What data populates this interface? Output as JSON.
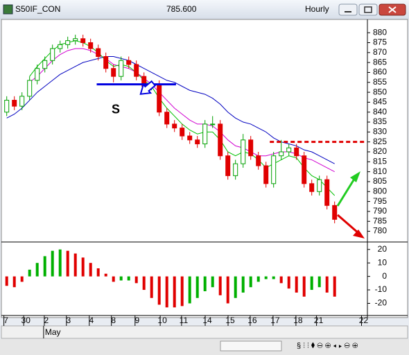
{
  "window": {
    "title": "S50IF_CON",
    "last": "785.600",
    "interval": "Hourly"
  },
  "chart_data": [
    {
      "type": "candlestick",
      "open": [
        840,
        846,
        843,
        848,
        856,
        862,
        866,
        872,
        874,
        876,
        877,
        875,
        872,
        868,
        862,
        858,
        866,
        864,
        858,
        853,
        854,
        840,
        834,
        832,
        828,
        826,
        824,
        834,
        834,
        818,
        808,
        814,
        826,
        818,
        813,
        804,
        818,
        820,
        822,
        818,
        804,
        800,
        806,
        793
      ],
      "high": [
        848,
        848,
        850,
        858,
        864,
        868,
        874,
        876,
        878,
        879,
        879,
        877,
        874,
        870,
        864,
        868,
        868,
        866,
        860,
        856,
        856,
        842,
        836,
        834,
        830,
        828,
        836,
        838,
        836,
        820,
        816,
        829,
        828,
        820,
        815,
        820,
        826,
        824,
        824,
        820,
        806,
        808,
        808,
        795
      ],
      "low": [
        838,
        841,
        841,
        846,
        854,
        860,
        864,
        870,
        872,
        874,
        873,
        870,
        866,
        860,
        855,
        856,
        862,
        856,
        851,
        851,
        838,
        832,
        830,
        826,
        824,
        822,
        822,
        832,
        816,
        806,
        806,
        812,
        816,
        811,
        802,
        802,
        816,
        818,
        816,
        802,
        798,
        798,
        791,
        784
      ],
      "close": [
        846,
        843,
        848,
        856,
        862,
        866,
        872,
        874,
        876,
        877,
        875,
        872,
        868,
        862,
        858,
        866,
        864,
        858,
        853,
        854,
        840,
        834,
        832,
        828,
        826,
        824,
        834,
        834,
        818,
        808,
        814,
        826,
        818,
        813,
        804,
        818,
        820,
        822,
        818,
        804,
        800,
        806,
        793,
        786
      ],
      "up_color": "#00a000",
      "down_color": "#e00000",
      "overlays": [
        {
          "color": "#0000c0",
          "values": [
            837,
            839,
            842,
            846,
            850,
            853,
            856,
            859,
            861,
            863,
            865,
            866,
            867,
            868,
            868,
            867,
            866,
            864,
            862,
            860,
            858,
            856,
            855,
            853,
            851,
            850,
            849,
            847,
            844,
            840,
            837,
            835,
            834,
            832,
            830,
            827,
            825,
            824,
            823,
            821,
            820,
            818,
            816,
            814
          ]
        },
        {
          "color": "#d000d0",
          "values": [
            null,
            null,
            null,
            855,
            858,
            862,
            866,
            869,
            871,
            872,
            872,
            871,
            869,
            867,
            864,
            863,
            862,
            860,
            857,
            854,
            850,
            846,
            842,
            839,
            836,
            834,
            834,
            833,
            830,
            826,
            823,
            822,
            820,
            818,
            818,
            819,
            820,
            820,
            819,
            817,
            816,
            814,
            812,
            810
          ]
        },
        {
          "color": "#00c000",
          "values": [
            null,
            null,
            null,
            858,
            863,
            867,
            871,
            874,
            875,
            876,
            875,
            873,
            870,
            866,
            863,
            864,
            863,
            860,
            856,
            853,
            847,
            842,
            838,
            834,
            831,
            829,
            830,
            830,
            826,
            820,
            818,
            820,
            819,
            816,
            812,
            814,
            816,
            818,
            817,
            812,
            808,
            806,
            802,
            798
          ]
        }
      ],
      "levels": [
        {
          "value": 854,
          "x": [
            11.8,
            22.2
          ],
          "color": "#0000e0",
          "dashed": false
        },
        {
          "value": 825,
          "x": [
            34.5,
            47
          ],
          "color": "#e00000",
          "dashed": true
        }
      ],
      "annotations": [
        {
          "text": "S",
          "x": 14.3,
          "y": 841
        }
      ],
      "xlim": [
        -0.7,
        47.3
      ],
      "ylim": [
        776,
        886
      ],
      "yticks": [
        780,
        785,
        790,
        795,
        800,
        805,
        810,
        815,
        820,
        825,
        830,
        835,
        840,
        845,
        850,
        855,
        860,
        865,
        870,
        875,
        880
      ],
      "grid": false
    },
    {
      "type": "histogram-bar",
      "values": [
        -7,
        -8,
        -4,
        5,
        10,
        15,
        19,
        20,
        19,
        17,
        14,
        10,
        6,
        2,
        -4,
        -3,
        -3,
        -5,
        -10,
        -16,
        -21,
        -23,
        -23,
        -22,
        -20,
        -16,
        -11,
        -8,
        -14,
        -20,
        -16,
        -12,
        -8,
        -4,
        -2,
        -2,
        -5,
        -9,
        -12,
        -15,
        -10,
        -8,
        -12,
        -15
      ],
      "colors": [
        "#e00000",
        "#e00000",
        "#e00000",
        "#00b000",
        "#00b000",
        "#00b000",
        "#00b000",
        "#00b000",
        "#e00000",
        "#e00000",
        "#e00000",
        "#e00000",
        "#e00000",
        "#e00000",
        "#e00000",
        "#00b000",
        "#00b000",
        "#e00000",
        "#e00000",
        "#e00000",
        "#e00000",
        "#e00000",
        "#e00000",
        "#e00000",
        "#00b000",
        "#00b000",
        "#00b000",
        "#00b000",
        "#e00000",
        "#e00000",
        "#00b000",
        "#00b000",
        "#00b000",
        "#00b000",
        "#00b000",
        "#00b000",
        "#e00000",
        "#e00000",
        "#e00000",
        "#e00000",
        "#00b000",
        "#00b000",
        "#e00000",
        "#e00000"
      ],
      "xlim": [
        -0.7,
        47.3
      ],
      "ylim": [
        -29,
        24
      ],
      "yticks": [
        -20,
        -10,
        0,
        10,
        20
      ],
      "xticks": [
        {
          "value": -0.1,
          "label": "7"
        },
        {
          "value": 2.5,
          "label": "30"
        },
        {
          "value": 5.2,
          "label": "2"
        },
        {
          "value": 8.1,
          "label": "3"
        },
        {
          "value": 11.1,
          "label": "4"
        },
        {
          "value": 14,
          "label": "8"
        },
        {
          "value": 17.1,
          "label": "9"
        },
        {
          "value": 20.4,
          "label": "10"
        },
        {
          "value": 23.2,
          "label": "11"
        },
        {
          "value": 26.3,
          "label": "14"
        },
        {
          "value": 29.3,
          "label": "15"
        },
        {
          "value": 32.2,
          "label": "16"
        },
        {
          "value": 35.2,
          "label": "17"
        },
        {
          "value": 38.2,
          "label": "18"
        },
        {
          "value": 40.9,
          "label": "21"
        },
        {
          "value": 46.8,
          "label": "22"
        }
      ],
      "month": {
        "value": 5.2,
        "label": "May"
      }
    }
  ]
}
